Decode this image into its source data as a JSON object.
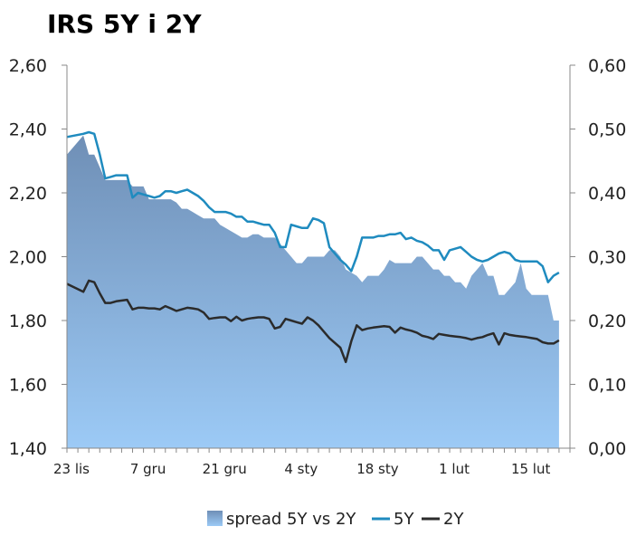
{
  "chart_data": {
    "type": "area",
    "title": "IRS 5Y i 2Y",
    "x_labels": [
      "23 lis",
      "7 gru",
      "21 gru",
      "4 sty",
      "18 sty",
      "1 lut",
      "15 lut"
    ],
    "x_label_positions": [
      0,
      14,
      28,
      42,
      56,
      70,
      84
    ],
    "x_range": [
      0,
      92
    ],
    "y_left": {
      "min": 1.4,
      "max": 2.6,
      "ticks": [
        "1,40",
        "1,60",
        "1,80",
        "2,00",
        "2,20",
        "2,40",
        "2,60"
      ]
    },
    "y_right": {
      "min": 0.0,
      "max": 0.6,
      "ticks": [
        "0,00",
        "0,10",
        "0,20",
        "0,30",
        "0,40",
        "0,50",
        "0,60"
      ]
    },
    "legend": [
      "spread 5Y vs 2Y",
      "5Y",
      "2Y"
    ],
    "colors": {
      "spread_top": "#6f8fb6",
      "spread_bottom": "#9ccaf6",
      "line_5y": "#1f8bbf",
      "line_2y": "#2b2b2b",
      "axis": "#888888"
    },
    "series": [
      {
        "name": "spread 5Y vs 2Y",
        "axis": "right",
        "x": [
          0,
          3,
          4,
          5,
          6,
          7,
          8,
          9,
          11,
          12,
          13,
          14,
          15,
          16,
          17,
          18,
          19,
          20,
          21,
          22,
          23,
          24,
          25,
          26,
          27,
          28,
          29,
          30,
          31,
          32,
          33,
          34,
          35,
          36,
          37,
          38,
          39,
          40,
          41,
          42,
          43,
          44,
          45,
          46,
          47,
          48,
          49,
          50,
          51,
          52,
          53,
          54,
          55,
          56,
          57,
          58,
          59,
          60,
          61,
          62,
          63,
          64,
          65,
          66,
          67,
          68,
          69,
          70,
          71,
          72,
          73,
          74,
          75,
          76,
          77,
          78,
          79,
          80,
          81,
          82,
          83,
          84,
          85,
          86,
          87,
          88,
          89,
          90
        ],
        "values": [
          0.46,
          0.49,
          0.46,
          0.46,
          0.44,
          0.42,
          0.42,
          0.42,
          0.42,
          0.41,
          0.41,
          0.41,
          0.39,
          0.39,
          0.39,
          0.39,
          0.39,
          0.385,
          0.375,
          0.375,
          0.37,
          0.365,
          0.36,
          0.36,
          0.36,
          0.35,
          0.345,
          0.34,
          0.335,
          0.33,
          0.33,
          0.335,
          0.335,
          0.33,
          0.33,
          0.33,
          0.32,
          0.31,
          0.3,
          0.29,
          0.29,
          0.3,
          0.3,
          0.3,
          0.3,
          0.31,
          0.31,
          0.3,
          0.28,
          0.275,
          0.27,
          0.26,
          0.27,
          0.27,
          0.27,
          0.28,
          0.295,
          0.29,
          0.29,
          0.29,
          0.29,
          0.3,
          0.3,
          0.29,
          0.28,
          0.28,
          0.27,
          0.27,
          0.26,
          0.26,
          0.25,
          0.27,
          0.28,
          0.29,
          0.27,
          0.27,
          0.24,
          0.24,
          0.25,
          0.26,
          0.29,
          0.25,
          0.24,
          0.24,
          0.24,
          0.24,
          0.2,
          0.2
        ]
      },
      {
        "name": "5Y",
        "axis": "left",
        "x": [
          0,
          3,
          4,
          5,
          6,
          7,
          8,
          9,
          11,
          12,
          13,
          14,
          15,
          16,
          17,
          18,
          19,
          20,
          21,
          22,
          23,
          24,
          25,
          26,
          27,
          28,
          29,
          30,
          31,
          32,
          33,
          34,
          35,
          36,
          37,
          38,
          39,
          40,
          41,
          42,
          43,
          44,
          45,
          46,
          47,
          48,
          49,
          50,
          51,
          52,
          53,
          54,
          55,
          56,
          57,
          58,
          59,
          60,
          61,
          62,
          63,
          64,
          65,
          66,
          67,
          68,
          69,
          70,
          71,
          72,
          73,
          74,
          75,
          76,
          77,
          78,
          79,
          80,
          81,
          82,
          83,
          84,
          85,
          86,
          87,
          88,
          89,
          90
        ],
        "values": [
          2.375,
          2.385,
          2.39,
          2.385,
          2.32,
          2.245,
          2.25,
          2.255,
          2.255,
          2.185,
          2.2,
          2.195,
          2.19,
          2.185,
          2.19,
          2.205,
          2.205,
          2.2,
          2.205,
          2.21,
          2.2,
          2.19,
          2.175,
          2.155,
          2.14,
          2.14,
          2.14,
          2.135,
          2.125,
          2.125,
          2.11,
          2.11,
          2.105,
          2.1,
          2.1,
          2.075,
          2.03,
          2.03,
          2.1,
          2.095,
          2.09,
          2.09,
          2.12,
          2.115,
          2.105,
          2.03,
          2.01,
          1.99,
          1.975,
          1.955,
          2.0,
          2.06,
          2.06,
          2.06,
          2.065,
          2.065,
          2.07,
          2.07,
          2.075,
          2.055,
          2.06,
          2.05,
          2.045,
          2.035,
          2.02,
          2.02,
          1.99,
          2.02,
          2.025,
          2.03,
          2.015,
          2.0,
          1.99,
          1.985,
          1.99,
          2.0,
          2.01,
          2.015,
          2.01,
          1.99,
          1.985,
          1.985,
          1.985,
          1.985,
          1.97,
          1.92,
          1.94,
          1.95
        ]
      },
      {
        "name": "2Y",
        "axis": "left",
        "x": [
          0,
          3,
          4,
          5,
          6,
          7,
          8,
          9,
          11,
          12,
          13,
          14,
          15,
          16,
          17,
          18,
          19,
          20,
          21,
          22,
          23,
          24,
          25,
          26,
          27,
          28,
          29,
          30,
          31,
          32,
          33,
          34,
          35,
          36,
          37,
          38,
          39,
          40,
          41,
          42,
          43,
          44,
          45,
          46,
          47,
          48,
          49,
          50,
          51,
          52,
          53,
          54,
          55,
          56,
          57,
          58,
          59,
          60,
          61,
          62,
          63,
          64,
          65,
          66,
          67,
          68,
          69,
          70,
          71,
          72,
          73,
          74,
          75,
          76,
          77,
          78,
          79,
          80,
          81,
          82,
          83,
          84,
          85,
          86,
          87,
          88,
          89,
          90
        ],
        "values": [
          1.915,
          1.89,
          1.925,
          1.92,
          1.885,
          1.855,
          1.855,
          1.86,
          1.865,
          1.835,
          1.84,
          1.84,
          1.838,
          1.838,
          1.835,
          1.845,
          1.838,
          1.83,
          1.835,
          1.84,
          1.838,
          1.835,
          1.825,
          1.805,
          1.808,
          1.81,
          1.81,
          1.798,
          1.812,
          1.8,
          1.805,
          1.808,
          1.81,
          1.81,
          1.805,
          1.775,
          1.78,
          1.805,
          1.8,
          1.795,
          1.79,
          1.81,
          1.8,
          1.785,
          1.765,
          1.745,
          1.73,
          1.715,
          1.67,
          1.735,
          1.785,
          1.77,
          1.775,
          1.778,
          1.78,
          1.782,
          1.78,
          1.762,
          1.778,
          1.772,
          1.768,
          1.762,
          1.752,
          1.748,
          1.742,
          1.758,
          1.755,
          1.752,
          1.75,
          1.748,
          1.745,
          1.74,
          1.745,
          1.748,
          1.755,
          1.76,
          1.725,
          1.76,
          1.755,
          1.752,
          1.75,
          1.748,
          1.745,
          1.742,
          1.732,
          1.728,
          1.728,
          1.738
        ]
      }
    ]
  }
}
